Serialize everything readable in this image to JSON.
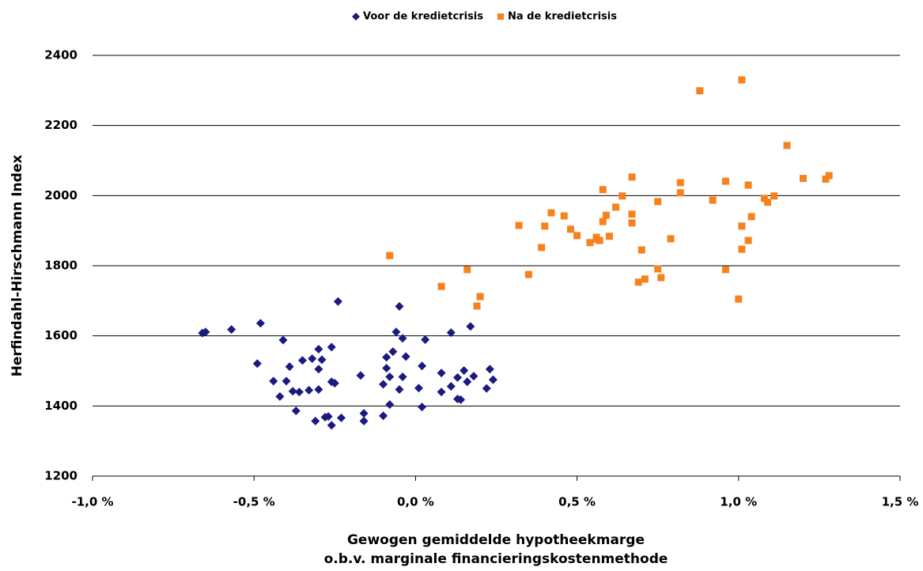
{
  "chart_data": {
    "type": "scatter",
    "y_label": "Herfindahl-Hirschmann Index",
    "x_label": [
      "Gewogen gemiddelde hypotheekmarge",
      "o.b.v. marginale financieringskostenmethode"
    ],
    "xlim": [
      -1.0,
      1.5
    ],
    "xticks": [
      {
        "value": -1.0,
        "label": "-1,0 %"
      },
      {
        "value": -0.5,
        "label": "-0,5 %"
      },
      {
        "value": 0.0,
        "label": "0,0 %"
      },
      {
        "value": 0.5,
        "label": "0,5 %"
      },
      {
        "value": 1.0,
        "label": "1,0 %"
      },
      {
        "value": 1.5,
        "label": "1,5 %"
      }
    ],
    "ylim": [
      1200,
      2400
    ],
    "yticks": [
      1200,
      1400,
      1600,
      1800,
      2000,
      2200,
      2400
    ],
    "grid": true,
    "legend": "top",
    "series": [
      {
        "name": "Voor de kredietcrisis",
        "color": "#1a1a80",
        "marker": "diamond",
        "x": [
          -0.66,
          -0.65,
          -0.57,
          -0.48,
          -0.49,
          -0.44,
          -0.41,
          -0.42,
          -0.4,
          -0.39,
          -0.38,
          -0.36,
          -0.37,
          -0.35,
          -0.33,
          -0.32,
          -0.31,
          -0.3,
          -0.3,
          -0.28,
          -0.3,
          -0.29,
          -0.24,
          -0.26,
          -0.27,
          -0.26,
          -0.26,
          -0.25,
          -0.23,
          -0.17,
          -0.16,
          -0.16,
          -0.1,
          -0.1,
          -0.09,
          -0.08,
          -0.09,
          -0.08,
          -0.07,
          -0.06,
          -0.05,
          -0.05,
          -0.04,
          -0.04,
          -0.03,
          0.01,
          0.02,
          0.03,
          0.02,
          0.08,
          0.08,
          0.11,
          0.11,
          0.13,
          0.13,
          0.14,
          0.15,
          0.16,
          0.17,
          0.18,
          0.22,
          0.23,
          0.24
        ],
        "values": [
          1608,
          1611,
          1618,
          1636,
          1521,
          1471,
          1588,
          1427,
          1471,
          1512,
          1442,
          1440,
          1386,
          1530,
          1445,
          1535,
          1357,
          1505,
          1562,
          1368,
          1447,
          1532,
          1698,
          1568,
          1370,
          1469,
          1345,
          1465,
          1366,
          1487,
          1379,
          1357,
          1462,
          1372,
          1539,
          1483,
          1508,
          1404,
          1555,
          1611,
          1447,
          1684,
          1593,
          1483,
          1541,
          1451,
          1397,
          1589,
          1514,
          1440,
          1494,
          1609,
          1456,
          1481,
          1420,
          1418,
          1501,
          1469,
          1627,
          1485,
          1450,
          1505,
          1475
        ]
      },
      {
        "name": "Na de kredietcrisis",
        "color": "#f5821f",
        "marker": "square",
        "x": [
          -0.08,
          0.08,
          0.16,
          0.19,
          0.2,
          0.32,
          0.35,
          0.39,
          0.4,
          0.42,
          0.46,
          0.48,
          0.5,
          0.54,
          0.56,
          0.56,
          0.57,
          0.58,
          0.58,
          0.59,
          0.6,
          0.62,
          0.64,
          0.67,
          0.67,
          0.67,
          0.7,
          0.69,
          0.71,
          0.75,
          0.75,
          0.76,
          0.79,
          0.82,
          0.82,
          0.88,
          0.92,
          0.96,
          0.96,
          1.0,
          1.01,
          1.01,
          1.01,
          1.03,
          1.03,
          1.04,
          1.08,
          1.09,
          1.11,
          1.15,
          1.2,
          1.27,
          1.28
        ],
        "values": [
          1829,
          1741,
          1789,
          1685,
          1712,
          1915,
          1775,
          1852,
          1913,
          1951,
          1942,
          1904,
          1886,
          1866,
          1881,
          1875,
          1872,
          1926,
          2017,
          1944,
          1884,
          1967,
          1999,
          2053,
          1947,
          1922,
          1845,
          1753,
          1762,
          1983,
          1791,
          1766,
          1877,
          2037,
          2008,
          2299,
          1987,
          2041,
          1789,
          1705,
          2330,
          1847,
          1913,
          2030,
          1872,
          1940,
          1992,
          1981,
          1999,
          2143,
          2049,
          2047,
          2057
        ]
      }
    ]
  }
}
